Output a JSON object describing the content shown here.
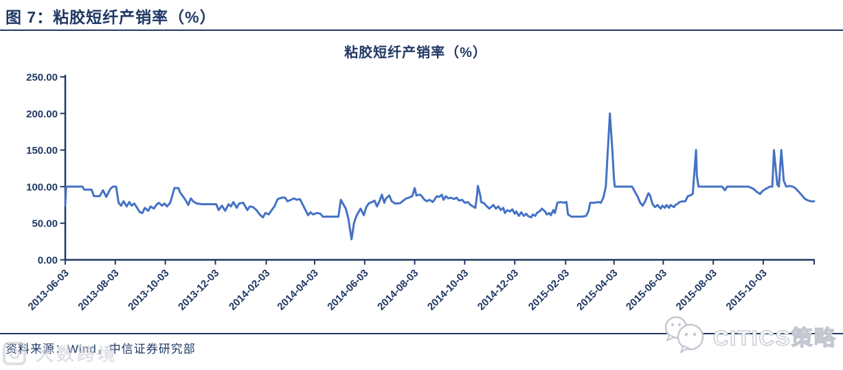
{
  "page": {
    "figure_label": "图 7：粘胶短纤产销率（%）",
    "source_note": "资料来源：Wind，中信证券研究部",
    "watermark_left": "大数跨境",
    "watermark_right": "CITICS策略"
  },
  "colors": {
    "navy": "#1f3864",
    "line_blue": "#4472c4",
    "watermark_gray": "#c3c7d0"
  },
  "chart_data": {
    "type": "line",
    "title": "粘胶短纤产销率（%）",
    "series_name": "粘胶短纤产销率",
    "xlabel": "",
    "ylabel": "",
    "ylim": [
      0,
      250
    ],
    "grid": false,
    "legend": "none",
    "y_ticks": [
      "0.00",
      "50.00",
      "100.00",
      "150.00",
      "200.00",
      "250.00"
    ],
    "y_tick_values": [
      0,
      50,
      100,
      150,
      200,
      250
    ],
    "x_start_date": "2013-06-03",
    "x_total_days": 913,
    "x_ticks": [
      {
        "day": 0,
        "label": "2013-06-03"
      },
      {
        "day": 61,
        "label": "2013-08-03"
      },
      {
        "day": 122,
        "label": "2013-10-03"
      },
      {
        "day": 183,
        "label": "2013-12-03"
      },
      {
        "day": 245,
        "label": "2014-02-03"
      },
      {
        "day": 304,
        "label": "2014-04-03"
      },
      {
        "day": 365,
        "label": "2014-06-03"
      },
      {
        "day": 426,
        "label": "2014-08-03"
      },
      {
        "day": 487,
        "label": "2014-10-03"
      },
      {
        "day": 548,
        "label": "2014-12-03"
      },
      {
        "day": 610,
        "label": "2015-02-03"
      },
      {
        "day": 669,
        "label": "2015-04-03"
      },
      {
        "day": 729,
        "label": "2015-06-03"
      },
      {
        "day": 790,
        "label": "2015-08-03"
      },
      {
        "day": 851,
        "label": "2015-10-03"
      },
      {
        "day": 913,
        "label": ""
      }
    ],
    "points_format": "[days_since_2013-06-03, percent_value]",
    "points": [
      [
        0,
        74
      ],
      [
        1,
        100
      ],
      [
        21,
        100
      ],
      [
        23,
        96
      ],
      [
        32,
        96
      ],
      [
        35,
        87
      ],
      [
        42,
        87
      ],
      [
        46,
        95
      ],
      [
        50,
        86
      ],
      [
        55,
        97
      ],
      [
        58,
        100
      ],
      [
        62,
        100
      ],
      [
        65,
        78
      ],
      [
        68,
        74
      ],
      [
        71,
        80
      ],
      [
        75,
        73
      ],
      [
        78,
        79
      ],
      [
        81,
        74
      ],
      [
        84,
        77
      ],
      [
        87,
        72
      ],
      [
        91,
        65
      ],
      [
        94,
        64
      ],
      [
        97,
        71
      ],
      [
        101,
        67
      ],
      [
        104,
        73
      ],
      [
        108,
        70
      ],
      [
        111,
        75
      ],
      [
        114,
        78
      ],
      [
        118,
        74
      ],
      [
        121,
        77
      ],
      [
        124,
        73
      ],
      [
        128,
        78
      ],
      [
        131,
        90
      ],
      [
        133,
        98
      ],
      [
        138,
        98
      ],
      [
        140,
        92
      ],
      [
        144,
        86
      ],
      [
        147,
        81
      ],
      [
        150,
        75
      ],
      [
        153,
        84
      ],
      [
        156,
        80
      ],
      [
        160,
        77
      ],
      [
        167,
        76
      ],
      [
        178,
        76
      ],
      [
        184,
        76
      ],
      [
        187,
        68
      ],
      [
        191,
        74
      ],
      [
        195,
        67
      ],
      [
        199,
        76
      ],
      [
        202,
        73
      ],
      [
        205,
        79
      ],
      [
        209,
        71
      ],
      [
        212,
        77
      ],
      [
        217,
        78
      ],
      [
        222,
        68
      ],
      [
        225,
        73
      ],
      [
        229,
        72
      ],
      [
        233,
        68
      ],
      [
        237,
        62
      ],
      [
        241,
        58
      ],
      [
        244,
        64
      ],
      [
        248,
        62
      ],
      [
        251,
        67
      ],
      [
        255,
        73
      ],
      [
        259,
        83
      ],
      [
        264,
        85
      ],
      [
        268,
        85
      ],
      [
        271,
        80
      ],
      [
        275,
        82
      ],
      [
        279,
        84
      ],
      [
        282,
        82
      ],
      [
        286,
        83
      ],
      [
        288,
        79
      ],
      [
        292,
        70
      ],
      [
        296,
        61
      ],
      [
        299,
        65
      ],
      [
        302,
        62
      ],
      [
        307,
        64
      ],
      [
        311,
        63
      ],
      [
        314,
        59
      ],
      [
        321,
        59
      ],
      [
        328,
        59
      ],
      [
        333,
        59
      ],
      [
        336,
        82
      ],
      [
        339,
        76
      ],
      [
        342,
        70
      ],
      [
        345,
        57
      ],
      [
        349,
        28
      ],
      [
        352,
        50
      ],
      [
        355,
        60
      ],
      [
        358,
        66
      ],
      [
        360,
        70
      ],
      [
        364,
        61
      ],
      [
        367,
        72
      ],
      [
        370,
        77
      ],
      [
        374,
        79
      ],
      [
        377,
        81
      ],
      [
        380,
        73
      ],
      [
        383,
        80
      ],
      [
        386,
        89
      ],
      [
        389,
        78
      ],
      [
        391,
        84
      ],
      [
        395,
        88
      ],
      [
        398,
        80
      ],
      [
        402,
        77
      ],
      [
        406,
        77
      ],
      [
        409,
        78
      ],
      [
        412,
        81
      ],
      [
        416,
        84
      ],
      [
        419,
        85
      ],
      [
        423,
        87
      ],
      [
        426,
        98
      ],
      [
        428,
        88
      ],
      [
        432,
        89
      ],
      [
        434,
        88
      ],
      [
        438,
        82
      ],
      [
        441,
        80
      ],
      [
        444,
        82
      ],
      [
        448,
        79
      ],
      [
        450,
        82
      ],
      [
        453,
        87
      ],
      [
        456,
        86
      ],
      [
        459,
        89
      ],
      [
        461,
        82
      ],
      [
        464,
        87
      ],
      [
        467,
        84
      ],
      [
        470,
        85
      ],
      [
        474,
        83
      ],
      [
        477,
        85
      ],
      [
        480,
        81
      ],
      [
        484,
        82
      ],
      [
        487,
        78
      ],
      [
        491,
        79
      ],
      [
        494,
        75
      ],
      [
        497,
        73
      ],
      [
        500,
        71
      ],
      [
        502,
        88
      ],
      [
        503,
        101
      ],
      [
        506,
        88
      ],
      [
        507,
        79
      ],
      [
        511,
        77
      ],
      [
        513,
        74
      ],
      [
        517,
        70
      ],
      [
        519,
        72
      ],
      [
        522,
        75
      ],
      [
        525,
        70
      ],
      [
        528,
        73
      ],
      [
        531,
        68
      ],
      [
        534,
        71
      ],
      [
        536,
        64
      ],
      [
        539,
        68
      ],
      [
        542,
        66
      ],
      [
        545,
        69
      ],
      [
        548,
        63
      ],
      [
        550,
        66
      ],
      [
        553,
        60
      ],
      [
        556,
        65
      ],
      [
        559,
        60
      ],
      [
        562,
        63
      ],
      [
        564,
        60
      ],
      [
        568,
        58
      ],
      [
        570,
        62
      ],
      [
        573,
        60
      ],
      [
        575,
        64
      ],
      [
        579,
        67
      ],
      [
        581,
        70
      ],
      [
        585,
        66
      ],
      [
        587,
        62
      ],
      [
        590,
        64
      ],
      [
        592,
        61
      ],
      [
        595,
        68
      ],
      [
        597,
        64
      ],
      [
        600,
        78
      ],
      [
        604,
        79
      ],
      [
        608,
        78
      ],
      [
        611,
        79
      ],
      [
        613,
        62
      ],
      [
        617,
        59
      ],
      [
        623,
        59
      ],
      [
        630,
        59
      ],
      [
        635,
        60
      ],
      [
        638,
        67
      ],
      [
        640,
        78
      ],
      [
        645,
        78
      ],
      [
        650,
        79
      ],
      [
        653,
        78
      ],
      [
        656,
        85
      ],
      [
        659,
        100
      ],
      [
        661,
        140
      ],
      [
        664,
        200
      ],
      [
        667,
        150
      ],
      [
        669,
        110
      ],
      [
        670,
        100
      ],
      [
        678,
        100
      ],
      [
        686,
        100
      ],
      [
        691,
        100
      ],
      [
        695,
        92
      ],
      [
        698,
        86
      ],
      [
        701,
        78
      ],
      [
        704,
        74
      ],
      [
        707,
        80
      ],
      [
        711,
        91
      ],
      [
        713,
        88
      ],
      [
        716,
        76
      ],
      [
        719,
        72
      ],
      [
        722,
        75
      ],
      [
        726,
        70
      ],
      [
        728,
        74
      ],
      [
        731,
        71
      ],
      [
        733,
        75
      ],
      [
        736,
        71
      ],
      [
        738,
        75
      ],
      [
        742,
        72
      ],
      [
        744,
        75
      ],
      [
        747,
        77
      ],
      [
        749,
        79
      ],
      [
        753,
        80
      ],
      [
        756,
        80
      ],
      [
        759,
        87
      ],
      [
        762,
        88
      ],
      [
        765,
        90
      ],
      [
        767,
        120
      ],
      [
        769,
        150
      ],
      [
        770,
        115
      ],
      [
        772,
        100
      ],
      [
        779,
        100
      ],
      [
        787,
        100
      ],
      [
        795,
        100
      ],
      [
        801,
        100
      ],
      [
        804,
        95
      ],
      [
        807,
        100
      ],
      [
        816,
        100
      ],
      [
        825,
        100
      ],
      [
        833,
        100
      ],
      [
        839,
        97
      ],
      [
        843,
        93
      ],
      [
        847,
        90
      ],
      [
        850,
        94
      ],
      [
        854,
        97
      ],
      [
        859,
        100
      ],
      [
        862,
        100
      ],
      [
        864,
        150
      ],
      [
        868,
        103
      ],
      [
        870,
        100
      ],
      [
        873,
        150
      ],
      [
        876,
        108
      ],
      [
        879,
        100
      ],
      [
        883,
        101
      ],
      [
        887,
        100
      ],
      [
        890,
        98
      ],
      [
        895,
        92
      ],
      [
        899,
        87
      ],
      [
        902,
        83
      ],
      [
        906,
        81
      ],
      [
        909,
        80
      ],
      [
        913,
        80
      ]
    ]
  }
}
